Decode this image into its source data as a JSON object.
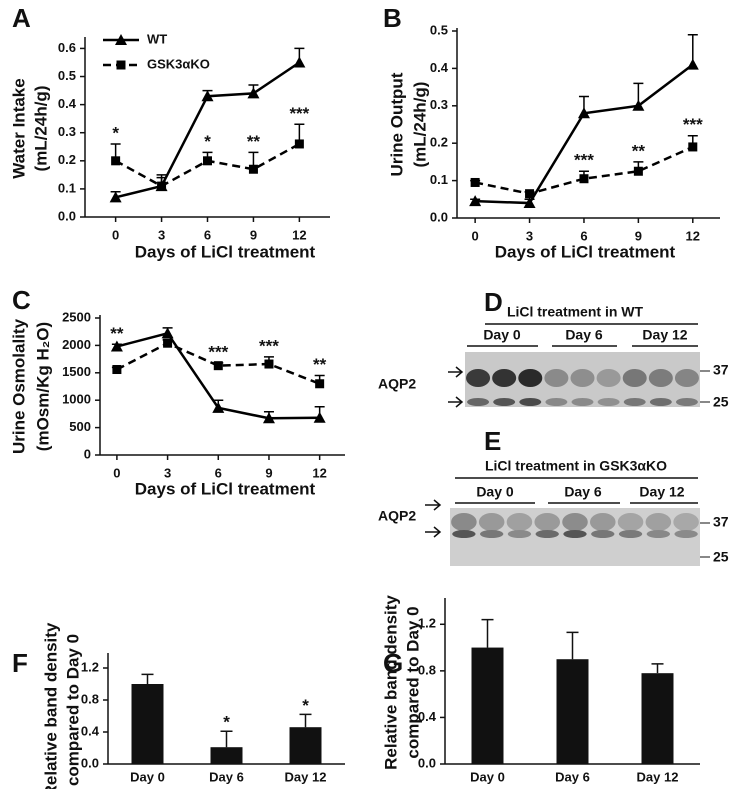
{
  "chart_data": [
    {
      "type": "line",
      "label": "A",
      "ylabel": [
        "Water Intake",
        "(mL/24h/g)"
      ],
      "xlabel": "Days of LiCl treatment",
      "x": [
        0,
        3,
        6,
        9,
        12
      ],
      "xlim": [
        -2,
        14
      ],
      "xticks": [
        0,
        3,
        6,
        9,
        12
      ],
      "ylim": [
        0,
        0.63
      ],
      "yticks": [
        {
          "value": 0,
          "label": "0.0"
        },
        0.1,
        0.2,
        0.3,
        0.4,
        0.5,
        0.6
      ],
      "legend": "upper left",
      "series": [
        {
          "name": "WT",
          "color": "#000000",
          "marker": "triangle",
          "dashed": false,
          "values": [
            0.07,
            0.11,
            0.43,
            0.44,
            0.55
          ],
          "errors": [
            0.02,
            0.03,
            0.02,
            0.03,
            0.05
          ]
        },
        {
          "name": "GSK3αKO",
          "color": "#000000",
          "marker": "square",
          "dashed": true,
          "values": [
            0.2,
            0.11,
            0.2,
            0.17,
            0.26
          ],
          "errors": [
            0.06,
            0.04,
            0.03,
            0.06,
            0.07
          ]
        }
      ],
      "annotations": [
        {
          "x": 0,
          "series": 1,
          "text": "*"
        },
        {
          "x": 6,
          "series": 1,
          "text": "*"
        },
        {
          "x": 9,
          "series": 1,
          "text": "**"
        },
        {
          "x": 12,
          "series": 1,
          "text": "***"
        }
      ]
    },
    {
      "type": "line",
      "label": "B",
      "ylabel": [
        "Urine Output",
        "(mL/24h/g)"
      ],
      "xlabel": "Days of LiCl treatment",
      "x": [
        0,
        3,
        6,
        9,
        12
      ],
      "xlim": [
        -1,
        13.5
      ],
      "xticks": [
        0,
        3,
        6,
        9,
        12
      ],
      "ylim": [
        0,
        0.5
      ],
      "yticks": [
        {
          "value": 0,
          "label": "0.0"
        },
        0.1,
        0.2,
        0.3,
        0.4,
        0.5
      ],
      "series": [
        {
          "color": "#000000",
          "marker": "triangle",
          "dashed": false,
          "values": [
            0.045,
            0.04,
            0.28,
            0.3,
            0.41
          ],
          "errors": [
            0.005,
            0.01,
            0.045,
            0.06,
            0.08
          ]
        },
        {
          "color": "#000000",
          "marker": "square",
          "dashed": true,
          "values": [
            0.095,
            0.065,
            0.105,
            0.125,
            0.19
          ],
          "errors": [
            0.005,
            0.005,
            0.02,
            0.025,
            0.03
          ]
        }
      ],
      "annotations": [
        {
          "x": 6,
          "series": 1,
          "text": "***"
        },
        {
          "x": 9,
          "series": 1,
          "text": "**"
        },
        {
          "x": 12,
          "series": 1,
          "text": "***"
        }
      ]
    },
    {
      "type": "line",
      "label": "C",
      "ylabel": [
        "Urine Osmolality",
        "(mOsm/Kg H₂O)"
      ],
      "xlabel": "Days of LiCl treatment",
      "x": [
        0,
        3,
        6,
        9,
        12
      ],
      "xlim": [
        -1,
        13.5
      ],
      "xticks": [
        0,
        3,
        6,
        9,
        12
      ],
      "ylim": [
        0,
        2500
      ],
      "yticks": [
        0,
        500,
        1000,
        1500,
        2000,
        2500
      ],
      "series": [
        {
          "color": "#000000",
          "marker": "triangle",
          "dashed": false,
          "values": [
            1980,
            2220,
            860,
            670,
            680
          ],
          "errors": [
            40,
            100,
            140,
            120,
            200
          ]
        },
        {
          "color": "#000000",
          "marker": "square",
          "dashed": true,
          "values": [
            1560,
            2040,
            1630,
            1660,
            1300
          ],
          "errors": [
            40,
            60,
            50,
            130,
            150
          ]
        }
      ],
      "annotations": [
        {
          "x": 0,
          "series": 0,
          "text": "**"
        },
        {
          "x": 6,
          "series": 1,
          "text": "***"
        },
        {
          "x": 9,
          "series": 1,
          "text": "***"
        },
        {
          "x": 12,
          "series": 1,
          "text": "**"
        }
      ]
    },
    {
      "type": "bar",
      "label": "F",
      "ylabel": [
        "Relative band density",
        "compared to Day 0"
      ],
      "categories": [
        "Day 0",
        "Day 6",
        "Day 12"
      ],
      "values": [
        1.0,
        0.21,
        0.46
      ],
      "errors": [
        0.12,
        0.2,
        0.16
      ],
      "color": "#111111",
      "ylim": [
        0,
        1.35
      ],
      "yticks": [
        {
          "value": 0,
          "label": "0.0"
        },
        0.4,
        0.8,
        1.2
      ],
      "annotations": [
        {
          "index": 1,
          "text": "*"
        },
        {
          "index": 2,
          "text": "*"
        }
      ]
    },
    {
      "type": "bar",
      "label": "G",
      "ylabel": [
        "Relative band density",
        "compared to Day 0"
      ],
      "categories": [
        "Day 0",
        "Day 6",
        "Day 12"
      ],
      "values": [
        1.0,
        0.9,
        0.78
      ],
      "errors": [
        0.24,
        0.23,
        0.08
      ],
      "color": "#111111",
      "ylim": [
        0,
        1.4
      ],
      "yticks": [
        {
          "value": 0,
          "label": "0.0"
        },
        0.4,
        0.8,
        1.2
      ]
    }
  ],
  "blots": [
    {
      "label": "D",
      "title": "LiCl treatment in WT",
      "lanes": [
        "Day 0",
        "Day 6",
        "Day 12"
      ],
      "protein": "AQP2",
      "markers": [
        37,
        25
      ]
    },
    {
      "label": "E",
      "title": "LiCl treatment in GSK3αKO",
      "lanes": [
        "Day 0",
        "Day 6",
        "Day 12"
      ],
      "protein": "AQP2",
      "markers": [
        37,
        25
      ]
    }
  ]
}
